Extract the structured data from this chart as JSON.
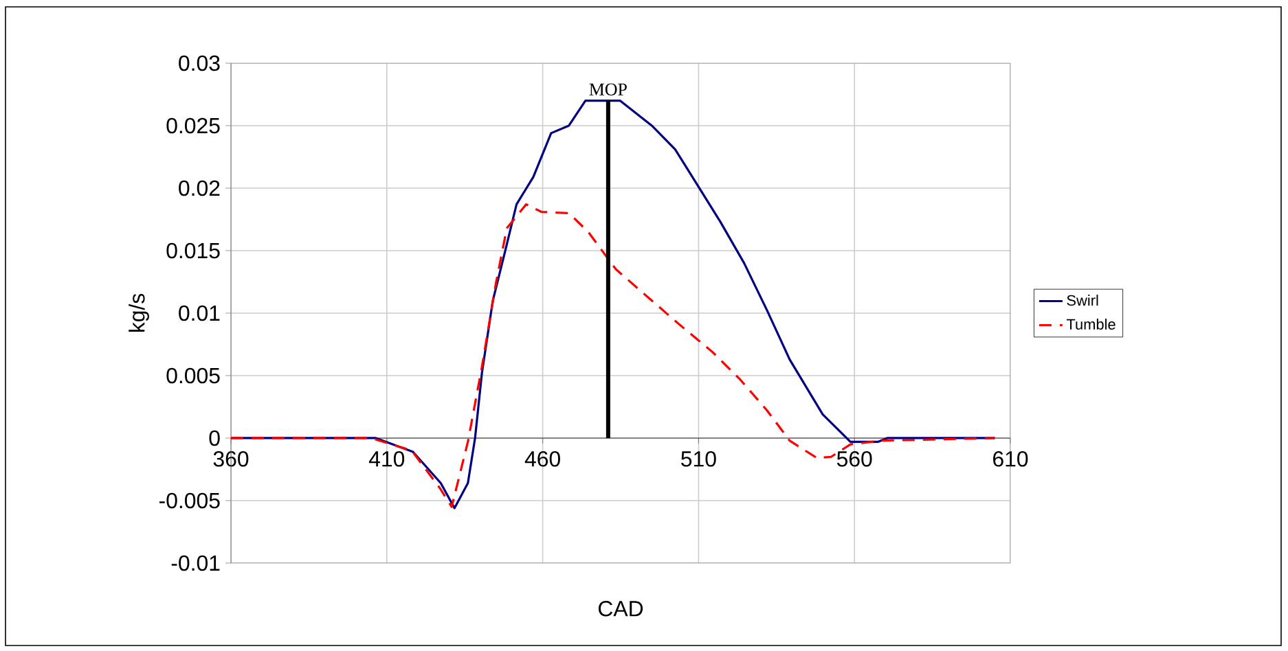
{
  "chart_data": {
    "type": "line",
    "xlabel": "CAD",
    "ylabel": "kg/s",
    "xlim": [
      360,
      610
    ],
    "xticks": [
      360,
      410,
      460,
      510,
      560,
      610
    ],
    "ylim": [
      -0.01,
      0.03
    ],
    "yticks": [
      -0.01,
      -0.005,
      0,
      0.005,
      0.01,
      0.015,
      0.02,
      0.025,
      0.03
    ],
    "grid": true,
    "legend": "right",
    "series": [
      {
        "name": "Swirl",
        "color": "#000080",
        "line_style": "solid",
        "x": [
          360,
          406.5,
          418.4,
          427.3,
          431.7,
          436,
          438.3,
          440.5,
          444,
          448,
          451.6,
          457,
          462.7,
          468.4,
          473.7,
          484.8,
          495,
          502.5,
          510,
          517,
          524.6,
          532,
          539.2,
          549.8,
          558.7,
          567.5,
          570.5,
          605
        ],
        "values": [
          0,
          0,
          -0.0011,
          -0.0036,
          -0.0056,
          -0.0036,
          0,
          0.0052,
          0.011,
          0.015,
          0.0187,
          0.0209,
          0.0244,
          0.025,
          0.027,
          0.027,
          0.025,
          0.0231,
          0.0201,
          0.0173,
          0.014,
          0.0102,
          0.0063,
          0.0019,
          -0.0003,
          -0.0003,
          0,
          0
        ]
      },
      {
        "name": "Tumble",
        "color": "#ff0000",
        "line_style": "dashed",
        "x": [
          360,
          405,
          418,
          427,
          430.8,
          436,
          440.5,
          445,
          448.5,
          454.7,
          459.6,
          468.4,
          474.6,
          483.5,
          495,
          503.8,
          514.4,
          523.3,
          532,
          539.2,
          548,
          552.5,
          558.7,
          569,
          605
        ],
        "values": [
          0,
          0,
          -0.001,
          -0.004,
          -0.0055,
          -0.0003,
          0.0057,
          0.0124,
          0.0168,
          0.0187,
          0.0181,
          0.018,
          0.0165,
          0.0135,
          0.011,
          0.0091,
          0.0069,
          0.0047,
          0.0022,
          -0.0002,
          -0.0016,
          -0.0015,
          -0.0005,
          -0.0002,
          0
        ]
      }
    ],
    "ref_lines": [
      {
        "axis": "x",
        "value": 481,
        "label": "MOP",
        "color": "#000000"
      }
    ]
  }
}
